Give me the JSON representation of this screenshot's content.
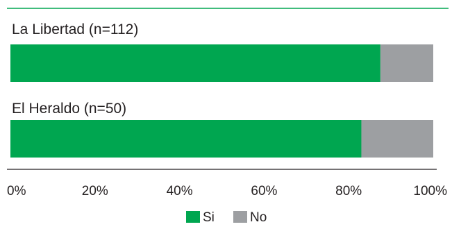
{
  "chart_data": {
    "type": "bar",
    "orientation": "horizontal",
    "stacked": true,
    "categories": [
      "La Libertad (n=112)",
      "El Heraldo (n=50)"
    ],
    "series": [
      {
        "name": "Si",
        "values": [
          87.5,
          83
        ],
        "color": "#00a650"
      },
      {
        "name": "No",
        "values": [
          12.5,
          17
        ],
        "color": "#9d9fa2"
      }
    ],
    "xlim": [
      0,
      100
    ],
    "x_ticks": [
      "0%",
      "20%",
      "40%",
      "60%",
      "80%",
      "100%"
    ],
    "x_tick_values": [
      0,
      20,
      40,
      60,
      80,
      100
    ],
    "legend_position": "bottom",
    "grid": false,
    "title": "",
    "xlabel": "",
    "ylabel": ""
  },
  "colors": {
    "accent_line": "#00a650",
    "axis_line": "#231f20"
  }
}
